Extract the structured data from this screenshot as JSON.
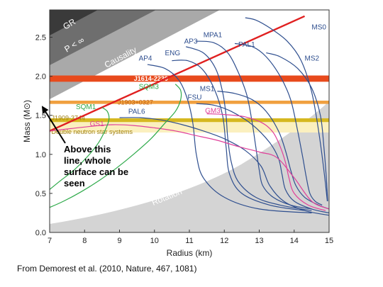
{
  "caption": "From Demorest et al. (2010, Nature, 467, 1081)",
  "chart_data": {
    "type": "line",
    "xlabel": "Radius (km)",
    "ylabel": "Mass (M⊙)",
    "xlim": [
      7,
      15
    ],
    "ylim": [
      0,
      2.85
    ],
    "x_ticks": [
      7,
      8,
      9,
      10,
      11,
      12,
      13,
      14,
      15
    ],
    "y_ticks": [
      0.0,
      0.5,
      1.0,
      1.5,
      2.0,
      2.5
    ],
    "regions": [
      {
        "name": "GR",
        "label": "GR",
        "color": "#3a3a3a"
      },
      {
        "name": "P<inf",
        "label": "P < ∞",
        "color": "#6e6e6e"
      },
      {
        "name": "Causality",
        "label": "Causality",
        "color": "#a9a9a9"
      },
      {
        "name": "Rotation",
        "label": "Rotation",
        "color": "#d4d4d4"
      }
    ],
    "limit_line": {
      "x": [
        7.0,
        14.3
      ],
      "y": [
        1.3,
        2.77
      ],
      "color": "#e02020"
    },
    "pulsar_bands": [
      {
        "label": "J1614-2230",
        "mass": 1.97,
        "halfwidth": 0.04,
        "color": "#e84a1c",
        "label_color": "#ffffff"
      },
      {
        "label": "J1903+0327",
        "mass": 1.667,
        "halfwidth": 0.021,
        "color": "#f0a040",
        "label_color": "#c06010"
      },
      {
        "label": "J1909-3744",
        "mass": 1.438,
        "halfwidth": 0.024,
        "color": "#d6b820",
        "label_color": "#a08010"
      },
      {
        "label": "Double neutron star systems",
        "mass": 1.35,
        "halfwidth": 0.07,
        "color": "#fbf0bf",
        "label_color": "#a08010"
      }
    ],
    "series": [
      {
        "name": "MS0",
        "color": "#2f4f8f",
        "x": [
          12.6,
          12.9,
          13.3,
          13.8,
          14.2,
          14.5,
          14.7,
          14.85,
          14.95
        ],
        "y": [
          2.75,
          2.72,
          2.62,
          2.45,
          2.2,
          1.8,
          1.3,
          0.8,
          0.4
        ]
      },
      {
        "name": "MS2",
        "color": "#2f4f8f",
        "x": [
          13.2,
          13.6,
          14.1,
          14.5,
          14.75,
          14.85,
          14.92,
          14.96
        ],
        "y": [
          2.3,
          2.25,
          2.1,
          1.85,
          1.5,
          1.1,
          0.7,
          0.4
        ]
      },
      {
        "name": "PAL1",
        "color": "#2f4f8f",
        "x": [
          12.3,
          12.8,
          13.2,
          13.6,
          13.9,
          14.1,
          14.25,
          14.35,
          14.45,
          14.6,
          14.8
        ],
        "y": [
          2.42,
          2.38,
          2.25,
          2.0,
          1.7,
          1.3,
          0.95,
          0.7,
          0.5,
          0.4,
          0.35
        ]
      },
      {
        "name": "MPA1",
        "color": "#2f4f8f",
        "x": [
          11.2,
          11.7,
          12.1,
          12.4,
          12.65,
          12.8,
          12.9,
          13.0,
          13.1,
          13.4,
          13.9,
          14.5
        ],
        "y": [
          2.45,
          2.43,
          2.3,
          2.05,
          1.75,
          1.4,
          1.1,
          0.8,
          0.6,
          0.45,
          0.35,
          0.3
        ]
      },
      {
        "name": "AP3",
        "color": "#2f4f8f",
        "x": [
          10.9,
          11.4,
          11.75,
          11.95,
          12.05,
          12.1,
          12.2,
          12.4,
          12.9,
          13.6,
          14.5
        ],
        "y": [
          2.38,
          2.3,
          2.1,
          1.8,
          1.5,
          1.2,
          0.9,
          0.65,
          0.45,
          0.35,
          0.28
        ]
      },
      {
        "name": "ENG",
        "color": "#2f4f8f",
        "x": [
          10.5,
          10.95,
          11.35,
          11.7,
          11.95,
          12.05,
          12.15,
          12.5,
          13.3,
          14.3
        ],
        "y": [
          2.2,
          2.2,
          2.1,
          1.85,
          1.5,
          1.1,
          0.75,
          0.5,
          0.35,
          0.28
        ]
      },
      {
        "name": "AP4",
        "color": "#2f4f8f",
        "x": [
          9.8,
          10.3,
          10.7,
          10.95,
          11.1,
          11.2,
          11.4,
          12.0,
          13.0,
          14.5
        ],
        "y": [
          2.15,
          2.1,
          1.95,
          1.7,
          1.4,
          1.0,
          0.7,
          0.45,
          0.3,
          0.25
        ]
      },
      {
        "name": "MS1",
        "color": "#2f4f8f",
        "x": [
          11.8,
          12.3,
          12.8,
          13.2,
          13.55,
          13.75,
          13.9,
          14.05,
          14.3,
          14.7,
          15.0
        ],
        "y": [
          1.81,
          1.78,
          1.7,
          1.55,
          1.3,
          1.05,
          0.8,
          0.6,
          0.45,
          0.35,
          0.3
        ]
      },
      {
        "name": "FSU",
        "color": "#2f4f8f",
        "x": [
          11.2,
          11.7,
          12.2,
          12.8,
          13.3,
          13.55,
          13.65,
          13.75,
          14.0,
          14.5,
          15.0
        ],
        "y": [
          1.65,
          1.63,
          1.55,
          1.38,
          1.15,
          0.95,
          0.75,
          0.55,
          0.4,
          0.3,
          0.25
        ]
      },
      {
        "name": "PAL6",
        "color": "#2f4f8f",
        "x": [
          9.0,
          9.6,
          10.2,
          10.8,
          11.4,
          12.0,
          12.6,
          13.05,
          13.3,
          13.7,
          14.3,
          15.0
        ],
        "y": [
          1.47,
          1.47,
          1.44,
          1.38,
          1.3,
          1.2,
          1.05,
          0.85,
          0.6,
          0.4,
          0.28,
          0.22
        ]
      },
      {
        "name": "GM3",
        "color": "#e0409a",
        "x": [
          11.5,
          12.0,
          12.6,
          13.1,
          13.4,
          13.6,
          13.75,
          13.85,
          14.0,
          14.4,
          14.9
        ],
        "y": [
          1.52,
          1.51,
          1.48,
          1.4,
          1.28,
          1.1,
          0.9,
          0.7,
          0.5,
          0.35,
          0.28
        ]
      },
      {
        "name": "GS1",
        "color": "#e0409a",
        "x": [
          7.0,
          7.6,
          8.2,
          8.8,
          9.4,
          10.0,
          10.6,
          11.2,
          11.8,
          12.4,
          13.0,
          13.5,
          14.0,
          14.5,
          15.0
        ],
        "y": [
          1.3,
          1.33,
          1.36,
          1.38,
          1.37,
          1.34,
          1.3,
          1.24,
          1.18,
          1.1,
          1.03,
          0.96,
          0.7,
          0.4,
          0.3
        ]
      },
      {
        "name": "SQM3",
        "color": "#2eaa4a",
        "x": [
          7.0,
          7.4,
          7.9,
          8.4,
          8.9,
          9.4,
          9.9,
          10.3,
          10.6,
          10.75,
          10.75,
          10.6
        ],
        "y": [
          0.32,
          0.4,
          0.52,
          0.66,
          0.82,
          1.0,
          1.2,
          1.4,
          1.55,
          1.7,
          1.82,
          1.9
        ]
      },
      {
        "name": "SQM1",
        "color": "#2eaa4a",
        "x": [
          7.0,
          7.3,
          7.7,
          8.1,
          8.4,
          8.6,
          8.7,
          8.65,
          8.5
        ],
        "y": [
          0.55,
          0.66,
          0.8,
          0.98,
          1.15,
          1.32,
          1.45,
          1.55,
          1.6
        ]
      }
    ],
    "annotation_lines": [
      "Above this",
      "line, whole",
      "surface can be",
      "seen"
    ]
  }
}
